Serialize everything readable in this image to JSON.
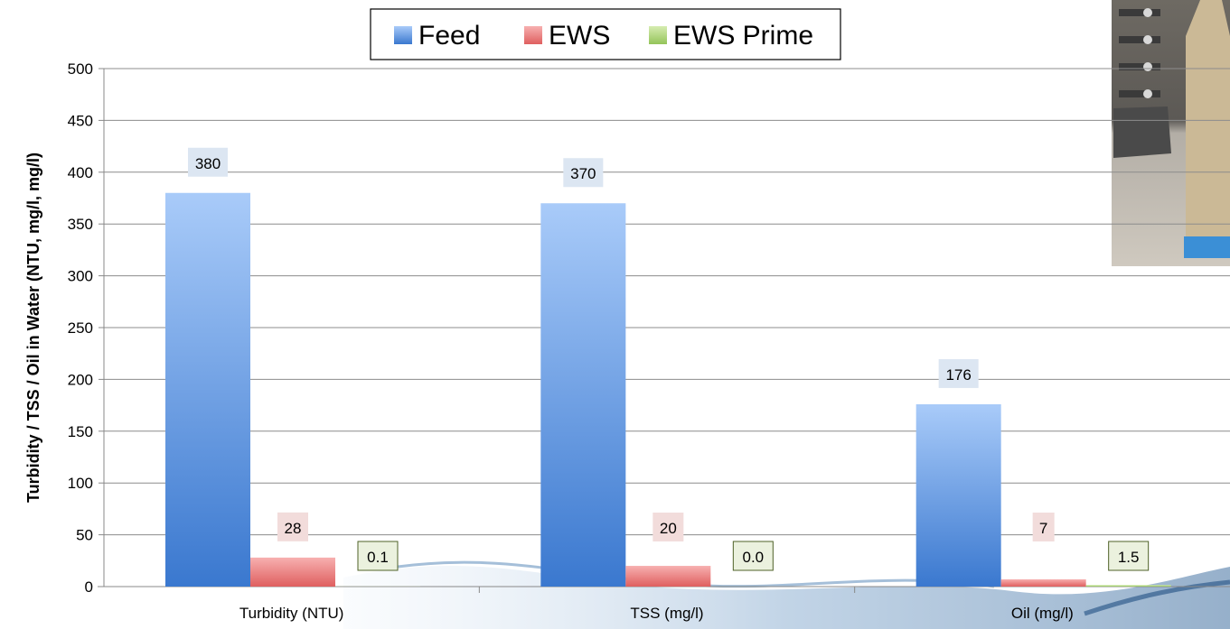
{
  "chart_data": {
    "type": "bar",
    "categories": [
      "Turbidity (NTU)",
      "TSS (mg/l)",
      "Oil (mg/l)"
    ],
    "series": [
      {
        "name": "Feed",
        "values": [
          380,
          370,
          176
        ],
        "labels": [
          "380",
          "370",
          "176"
        ],
        "color": "#4a86d8"
      },
      {
        "name": "EWS",
        "values": [
          28,
          20,
          7
        ],
        "labels": [
          "28",
          "20",
          "7"
        ],
        "color": "#e46e6e"
      },
      {
        "name": "EWS Prime",
        "values": [
          0.1,
          0.0,
          1.5
        ],
        "labels": [
          "0.1",
          "0.0",
          "1.5"
        ],
        "color": "#a7d26b"
      }
    ],
    "ylabel": "Turbidity / TSS / Oil in Water (NTU, mg/l, mg/l)",
    "xlabel": "",
    "ylim": [
      0,
      500
    ],
    "yticks": [
      0,
      50,
      100,
      150,
      200,
      250,
      300,
      350,
      400,
      450,
      500
    ],
    "grid": true,
    "legend_position": "top"
  },
  "photo": {
    "description_icon": "sample-bottle-photo"
  }
}
